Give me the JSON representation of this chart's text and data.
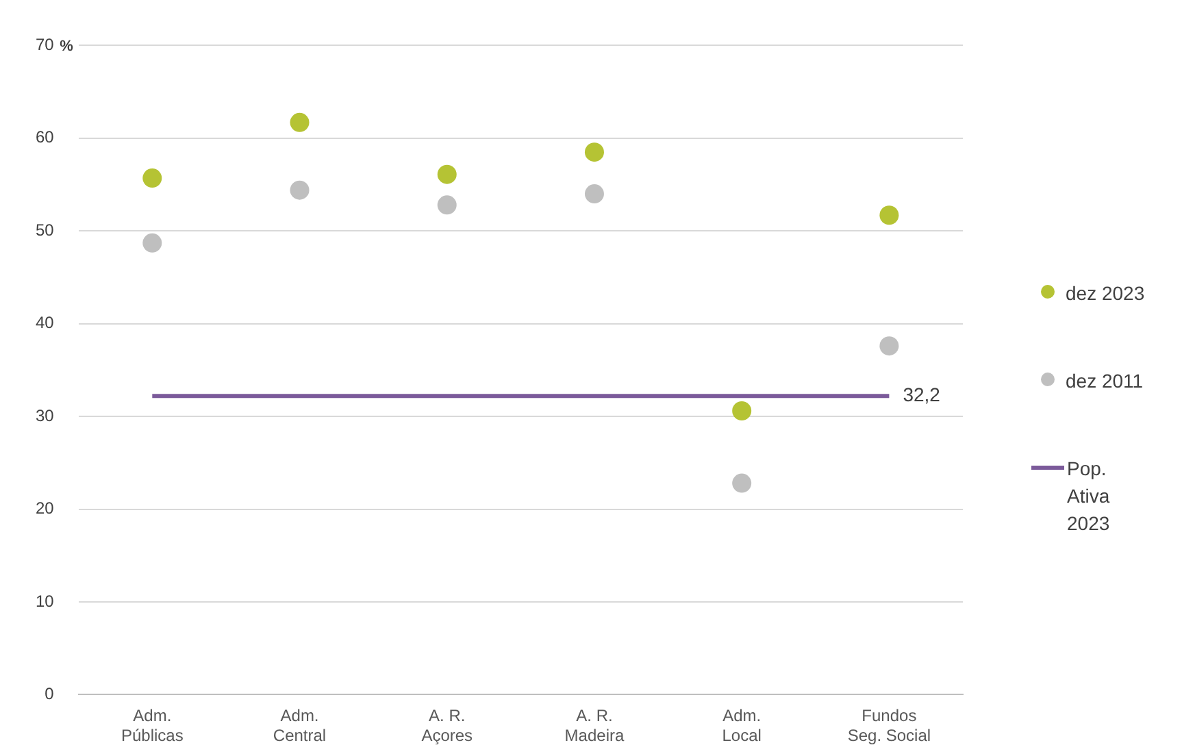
{
  "chart_data": {
    "type": "scatter",
    "ylabel": "%",
    "categories": [
      "Adm.\nPúblicas",
      "Adm.\nCentral",
      "A. R.\nAçores",
      "A. R.\nMadeira",
      "Adm.\nLocal",
      "Fundos\nSeg. Social"
    ],
    "series": [
      {
        "name": "dez 2023",
        "marker": "circle",
        "color": "#b5c334",
        "values": [
          55.7,
          61.7,
          56.1,
          58.5,
          30.6,
          51.7
        ]
      },
      {
        "name": "dez 2011",
        "marker": "circle",
        "color": "#bfbfbf",
        "values": [
          48.7,
          54.4,
          52.8,
          54.0,
          22.8,
          37.6
        ]
      },
      {
        "name": "Pop. Ativa 2023",
        "type": "line",
        "color": "#7b5a9a",
        "values": [
          32.2,
          32.2,
          32.2,
          32.2,
          32.2,
          32.2
        ],
        "value_labels": [
          null,
          null,
          null,
          null,
          null,
          "32,2"
        ]
      }
    ],
    "ylim": [
      0,
      70
    ],
    "yticks": [
      0,
      10,
      20,
      30,
      40,
      50,
      60,
      70
    ],
    "grid": "y",
    "legend": "right"
  }
}
